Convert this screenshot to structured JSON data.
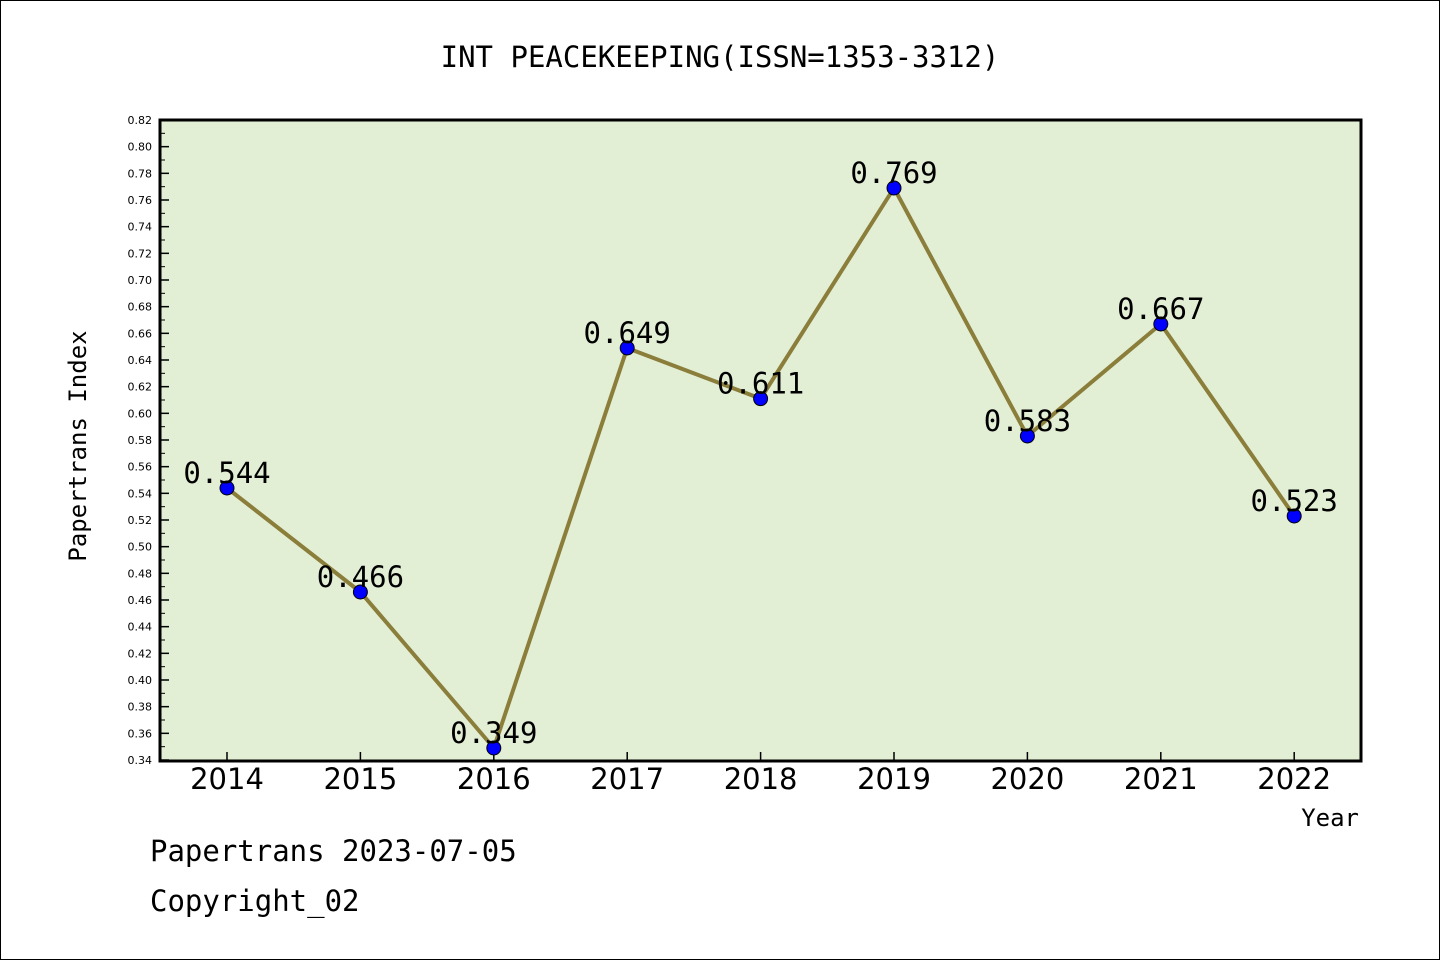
{
  "chart_data": {
    "type": "line",
    "title": "INT PEACEKEEPING(ISSN=1353-3312)",
    "xlabel": "Year",
    "ylabel": "Papertrans Index",
    "categories": [
      "2014",
      "2015",
      "2016",
      "2017",
      "2018",
      "2019",
      "2020",
      "2021",
      "2022"
    ],
    "values": [
      0.544,
      0.466,
      0.349,
      0.649,
      0.611,
      0.769,
      0.583,
      0.667,
      0.523
    ],
    "data_labels": [
      "0.544",
      "0.466",
      "0.349",
      "0.649",
      "0.611",
      "0.769",
      "0.583",
      "0.667",
      "0.523"
    ],
    "ylim": [
      0.34,
      0.82
    ],
    "yticks": [
      "0.34",
      "0.36",
      "0.38",
      "0.40",
      "0.42",
      "0.44",
      "0.46",
      "0.48",
      "0.50",
      "0.52",
      "0.54",
      "0.56",
      "0.58",
      "0.60",
      "0.62",
      "0.64",
      "0.66",
      "0.68",
      "0.70",
      "0.72",
      "0.74",
      "0.76",
      "0.78",
      "0.80",
      "0.82"
    ],
    "grid": false,
    "legend": "none",
    "colors": {
      "plot_background": "#e2efd5",
      "line": "#8b7d3a",
      "marker": "#0000ff"
    }
  },
  "footer": {
    "line1": "Papertrans 2023-07-05",
    "line2": "Copyright_02"
  }
}
